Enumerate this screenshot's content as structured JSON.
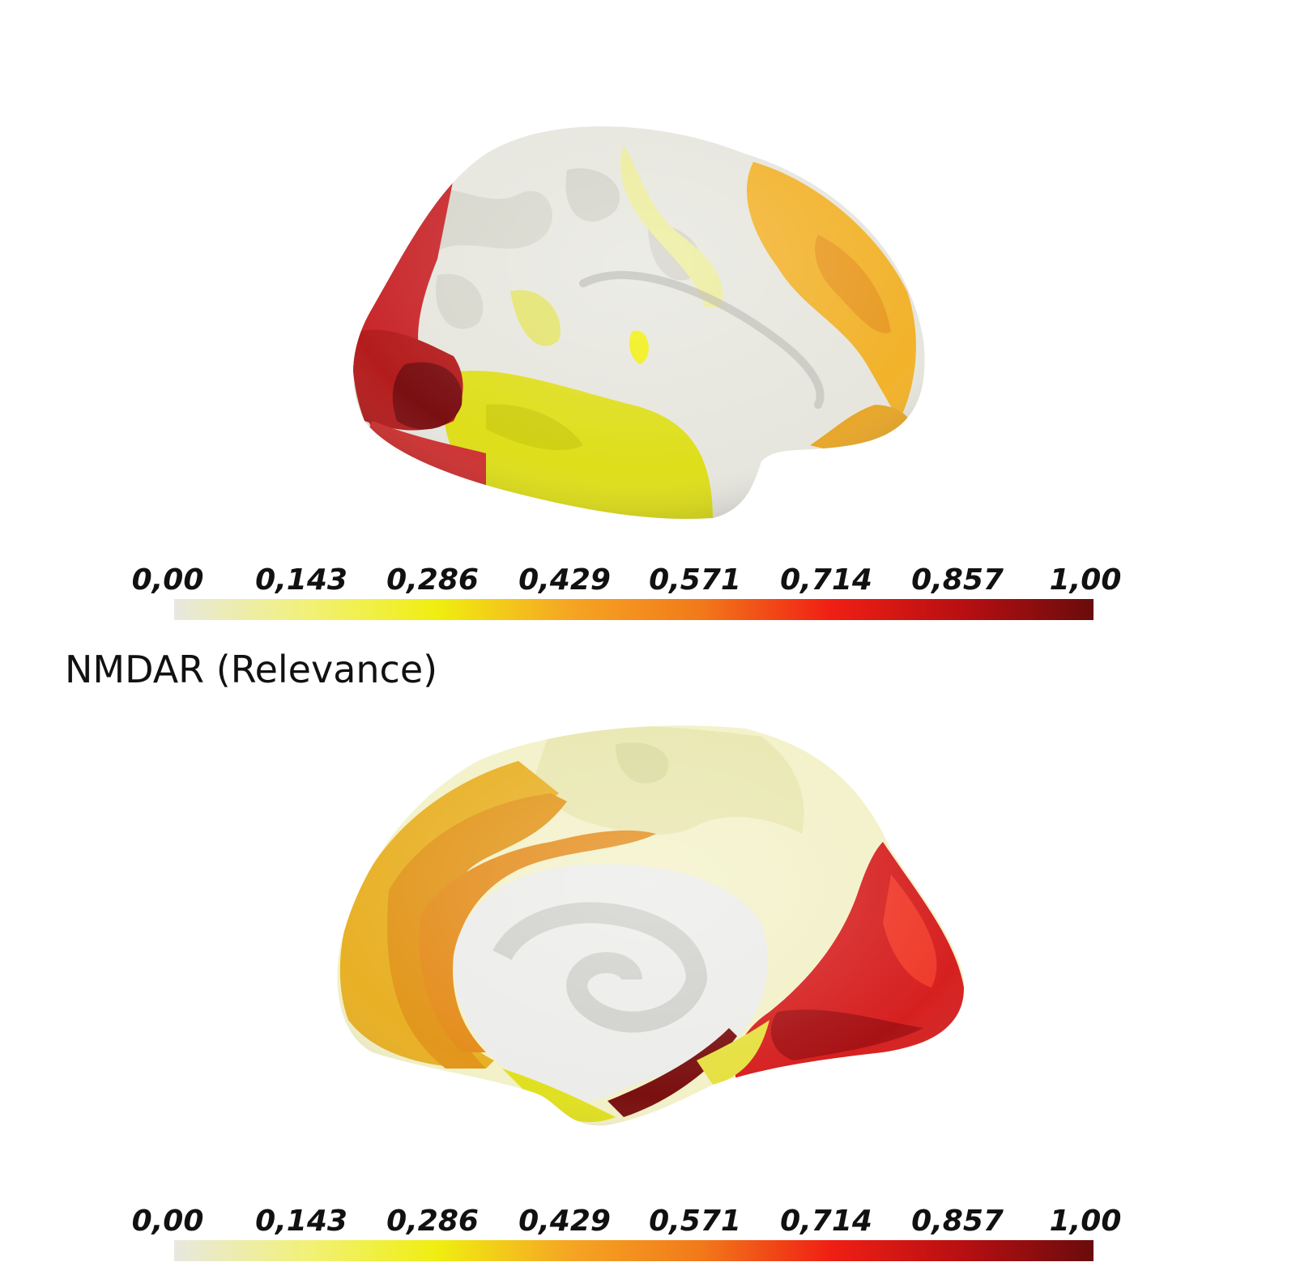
{
  "title": "NMDAR (Relevance)",
  "colorbars": [
    {
      "ticks": [
        "0,00",
        "0,143",
        "0,286",
        "0,429",
        "0,571",
        "0,714",
        "0,857",
        "1,00"
      ],
      "colors": [
        "#e8e8e0",
        "#f1f17a",
        "#f0ee10",
        "#f5a623",
        "#f27a1a",
        "#f01f14",
        "#b80f12",
        "#6a0c0c"
      ]
    },
    {
      "ticks": [
        "0,00",
        "0,143",
        "0,286",
        "0,429",
        "0,571",
        "0,714",
        "0,857",
        "1,00"
      ],
      "colors": [
        "#e8e8e0",
        "#f1f17a",
        "#f0ee10",
        "#f5a623",
        "#f27a1a",
        "#f01f14",
        "#b80f12",
        "#6a0c0c"
      ]
    }
  ],
  "views": [
    {
      "view": "lateral"
    },
    {
      "view": "medial"
    }
  ]
}
